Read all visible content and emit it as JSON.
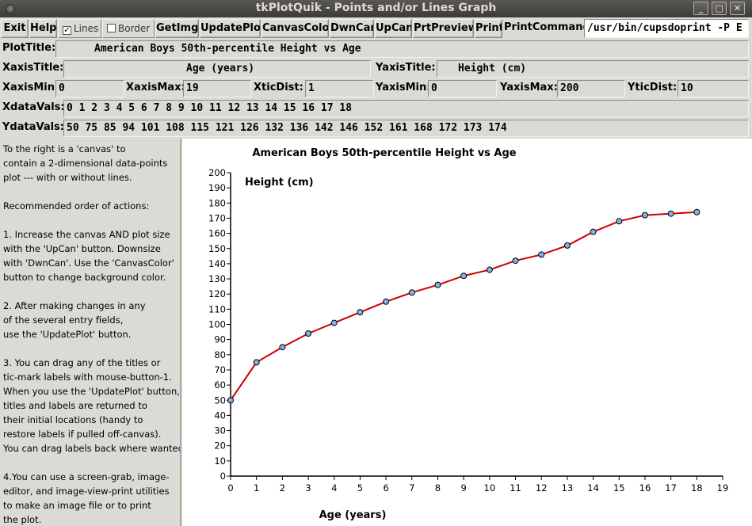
{
  "window": {
    "title": "tkPlotQuik - Points and/or Lines Graph"
  },
  "toolbar": {
    "exit": "Exit",
    "help": "Help",
    "lines_label": "Lines",
    "lines_checked": true,
    "border_label": "Border",
    "border_checked": false,
    "getimg": "GetImg",
    "updateplot": "UpdatePlot",
    "canvascolor": "CanvasColor",
    "dwncan": "DwnCan",
    "upcan": "UpCan",
    "prtpreview": "PrtPreview",
    "print": "Print",
    "printcommand_label": "PrintCommand:",
    "printcommand_value": "/usr/bin/cupsdoprint -P E"
  },
  "fields": {
    "plottitle_label": "PlotTitle:",
    "plottitle_value": "American Boys 50th-percentile Height vs Age",
    "xaxistitle_label": "XaxisTitle:",
    "xaxistitle_value": "Age (years)",
    "yaxistitle_label": "YaxisTitle:",
    "yaxistitle_value": "Height (cm)",
    "xaxismin_label": "XaxisMin:",
    "xaxismin_value": "0",
    "xaxismax_label": "XaxisMax:",
    "xaxismax_value": "19",
    "xticdist_label": "XticDist:",
    "xticdist_value": "1",
    "yaxismin_label": "YaxisMin:",
    "yaxismin_value": "0",
    "yaxismax_label": "YaxisMax:",
    "yaxismax_value": "200",
    "yticdist_label": "YticDist:",
    "yticdist_value": "10",
    "xdatavals_label": "XdataVals:",
    "xdatavals_value": "0 1 2 3 4 5 6 7 8 9 10 11 12 13 14 15 16 17 18",
    "ydatavals_label": "YdataVals:",
    "ydatavals_value": "50 75 85 94 101 108 115 121 126 132 136 142 146 152 161 168 172 173 174"
  },
  "help": {
    "text": "To the right is a 'canvas' to\ncontain a 2-dimensional data-points\nplot --- with or without lines.\n\nRecommended order of actions:\n\n1. Increase the canvas AND plot size\nwith the 'UpCan' button. Downsize\nwith 'DwnCan'. Use the 'CanvasColor'\nbutton to change background color.\n\n2. After making changes in any\nof the several entry fields,\nuse the 'UpdatePlot' button.\n\n3. You can drag any of the titles or\ntic-mark labels with mouse-button-1.\nWhen you use the 'UpdatePlot' button,\ntitles and labels are returned to\ntheir initial locations (handy to\nrestore labels if pulled off-canvas).\nYou can drag labels back where wanted.\n\n4.You can use a screen-grab, image-\neditor, and image-view-print utilities\nto make an image file or to print\nthe plot."
  },
  "colors": {
    "line": "#cc0000",
    "marker_fill": "#7fb2e5",
    "marker_stroke": "#000000",
    "canvas_bg": "#ffffff"
  },
  "chart_data": {
    "type": "line",
    "title": "American Boys 50th-percentile Height vs Age",
    "xlabel": "Age (years)",
    "ylabel": "Height (cm)",
    "x": [
      0,
      1,
      2,
      3,
      4,
      5,
      6,
      7,
      8,
      9,
      10,
      11,
      12,
      13,
      14,
      15,
      16,
      17,
      18
    ],
    "series": [
      {
        "values": [
          50,
          75,
          85,
          94,
          101,
          108,
          115,
          121,
          126,
          132,
          136,
          142,
          146,
          152,
          161,
          168,
          172,
          173,
          174
        ]
      }
    ],
    "xlim": [
      0,
      19
    ],
    "ylim": [
      0,
      200
    ],
    "xtick_step": 1,
    "ytick_step": 10,
    "grid": false,
    "markers": true,
    "lines": true
  }
}
